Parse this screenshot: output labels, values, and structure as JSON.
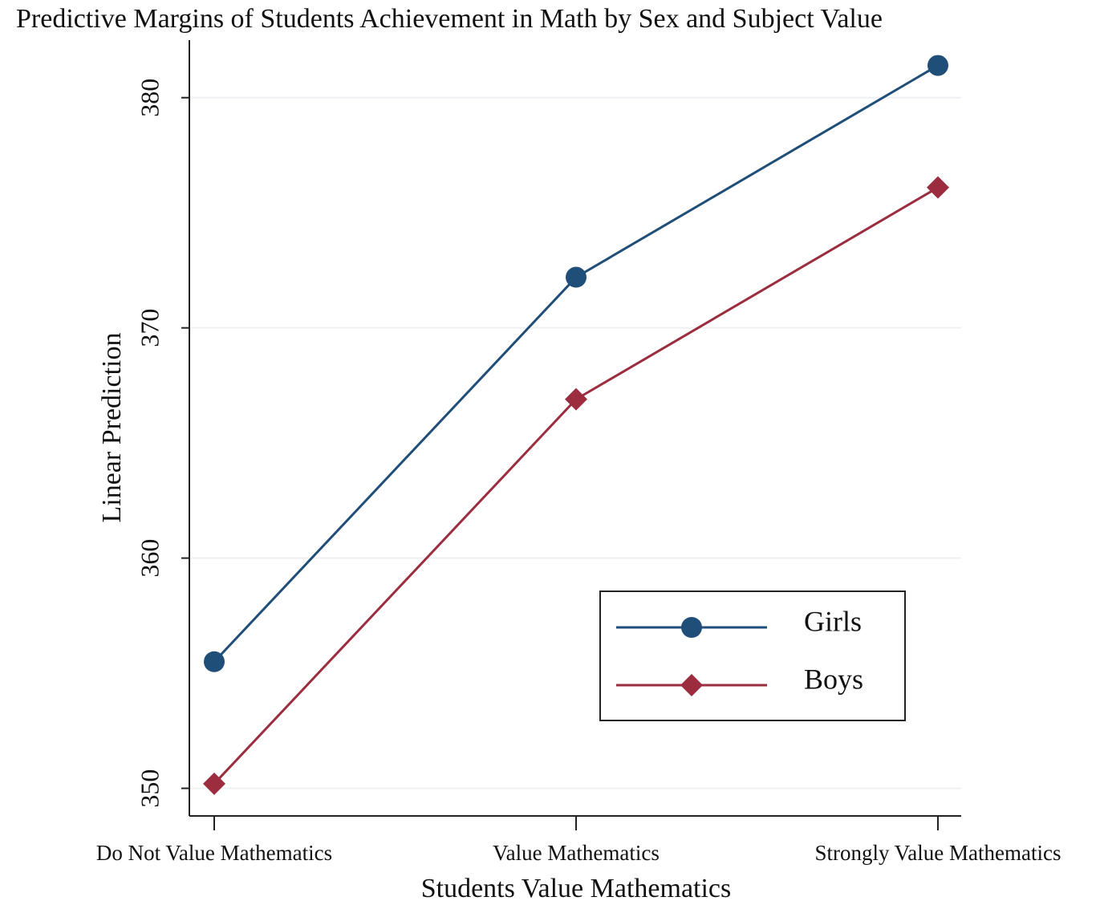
{
  "chart_data": {
    "type": "line",
    "title": "Predictive Margins of Students Achievement in Math by Sex and Subject Value",
    "x_label": "Students Value Mathematics",
    "y_label": "Linear Prediction",
    "categories": [
      "Do Not Value Mathematics",
      "Value Mathematics",
      "Strongly Value Mathematics"
    ],
    "series": [
      {
        "name": "Girls",
        "color": "#1f4e79",
        "marker": "circle",
        "values": [
          355.5,
          372.2,
          381.4
        ]
      },
      {
        "name": "Boys",
        "color": "#9b2d3f",
        "marker": "diamond",
        "values": [
          350.2,
          366.9,
          376.1
        ]
      }
    ],
    "ylim": [
      348.8,
      382.5
    ],
    "yticks": [
      350,
      360,
      370,
      380
    ],
    "grid": true,
    "legend": "lower right"
  }
}
